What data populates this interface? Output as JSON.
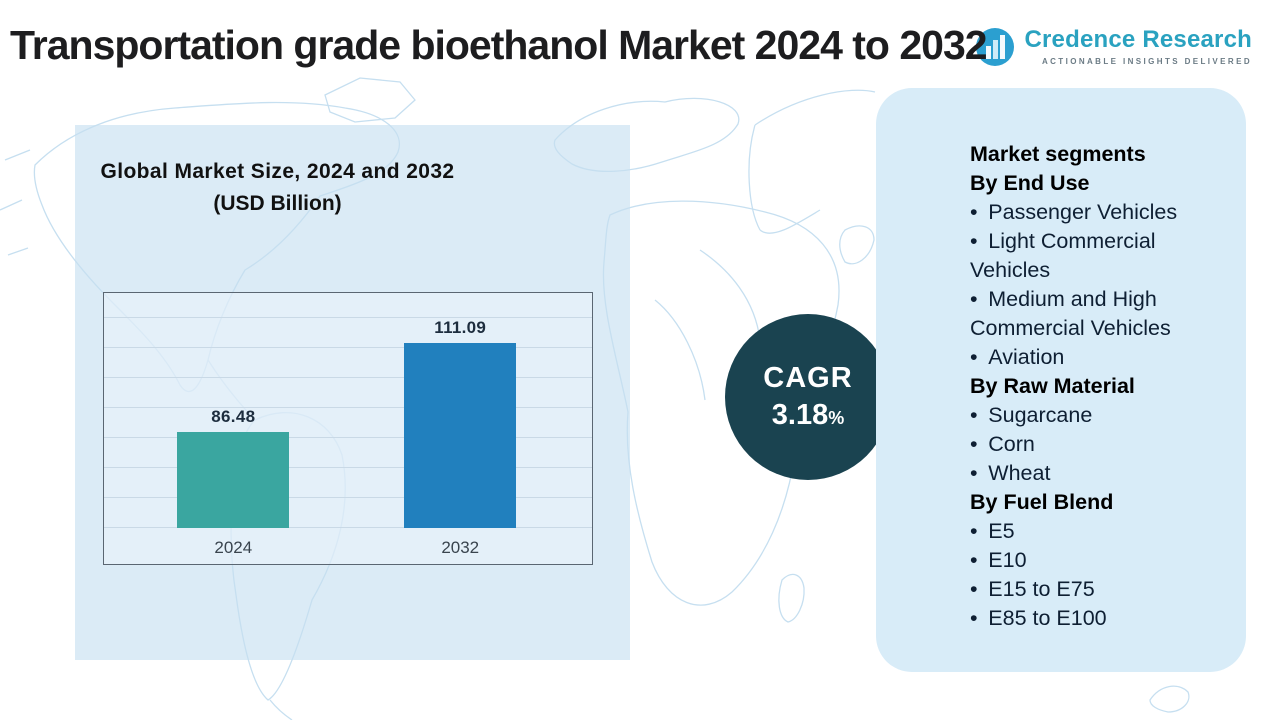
{
  "header": {
    "title": "Transportation grade bioethanol Market 2024 to 2032",
    "logo": {
      "name": "Credence Research",
      "tagline": "ACTIONABLE INSIGHTS DELIVERED",
      "brand_color": "#2aa2c0"
    }
  },
  "chart_data": {
    "type": "bar",
    "title": "Global Market Size, 2024 and 2032",
    "subtitle": "(USD Billion)",
    "xlabel": "",
    "ylabel": "",
    "categories": [
      "2024",
      "2032"
    ],
    "values": [
      86.48,
      111.09
    ],
    "value_labels": [
      "86.48",
      "111.09"
    ],
    "bar_colors": [
      "#3aa6a0",
      "#2180be"
    ],
    "ylim": [
      60,
      125
    ],
    "grid": true,
    "legend": "none"
  },
  "cagr": {
    "label": "CAGR",
    "value": "3.18",
    "percent_sign": "%",
    "bg_color": "#1a4350"
  },
  "segments_panel": {
    "bullet_char": "•",
    "items": [
      {
        "type": "heading",
        "text": "Market segments"
      },
      {
        "type": "heading",
        "text": "By End Use"
      },
      {
        "type": "bullet",
        "text": "Passenger Vehicles"
      },
      {
        "type": "bullet",
        "text": "Light Commercial Vehicles"
      },
      {
        "type": "bullet",
        "text": "Medium and High Commercial Vehicles"
      },
      {
        "type": "bullet",
        "text": "Aviation"
      },
      {
        "type": "heading",
        "text": "By Raw Material"
      },
      {
        "type": "bullet",
        "text": "Sugarcane"
      },
      {
        "type": "bullet",
        "text": "Corn"
      },
      {
        "type": "bullet",
        "text": "Wheat"
      },
      {
        "type": "heading",
        "text": "By Fuel Blend"
      },
      {
        "type": "bullet",
        "text": "E5"
      },
      {
        "type": "bullet",
        "text": "E10"
      },
      {
        "type": "bullet",
        "text": "E15 to E75"
      },
      {
        "type": "bullet",
        "text": "E85 to E100"
      }
    ]
  },
  "colors": {
    "panel_blue": "#d8ecf8",
    "map_line": "#c6dff0",
    "title_text": "#1d1d1f"
  }
}
